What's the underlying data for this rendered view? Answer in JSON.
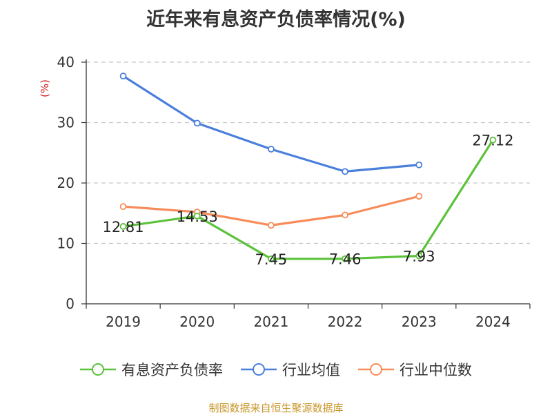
{
  "chart_data": {
    "type": "line",
    "title": "近年来有息资产负债率情况(%)",
    "ylabel": "(%)",
    "xlabel": "",
    "categories": [
      "2019",
      "2020",
      "2021",
      "2022",
      "2023",
      "2024"
    ],
    "ylim": [
      0,
      40
    ],
    "yticks": [
      0,
      10,
      20,
      30,
      40
    ],
    "grid": true,
    "legend_position": "bottom",
    "series": [
      {
        "name": "有息资产负债率",
        "color": "#5bc23a",
        "values": [
          12.81,
          14.53,
          7.45,
          7.46,
          7.93,
          27.12
        ],
        "labels": [
          "12.81",
          "14.53",
          "7.45",
          "7.46",
          "7.93",
          "27.12"
        ]
      },
      {
        "name": "行业均值",
        "color": "#4a7fdc",
        "values": [
          37.7,
          29.9,
          25.6,
          21.9,
          23.0,
          null
        ]
      },
      {
        "name": "行业中位数",
        "color": "#f78c5a",
        "values": [
          16.1,
          15.2,
          13.0,
          14.7,
          17.8,
          null
        ]
      }
    ]
  },
  "footer": {
    "source": "制图数据来自恒生聚源数据库"
  }
}
